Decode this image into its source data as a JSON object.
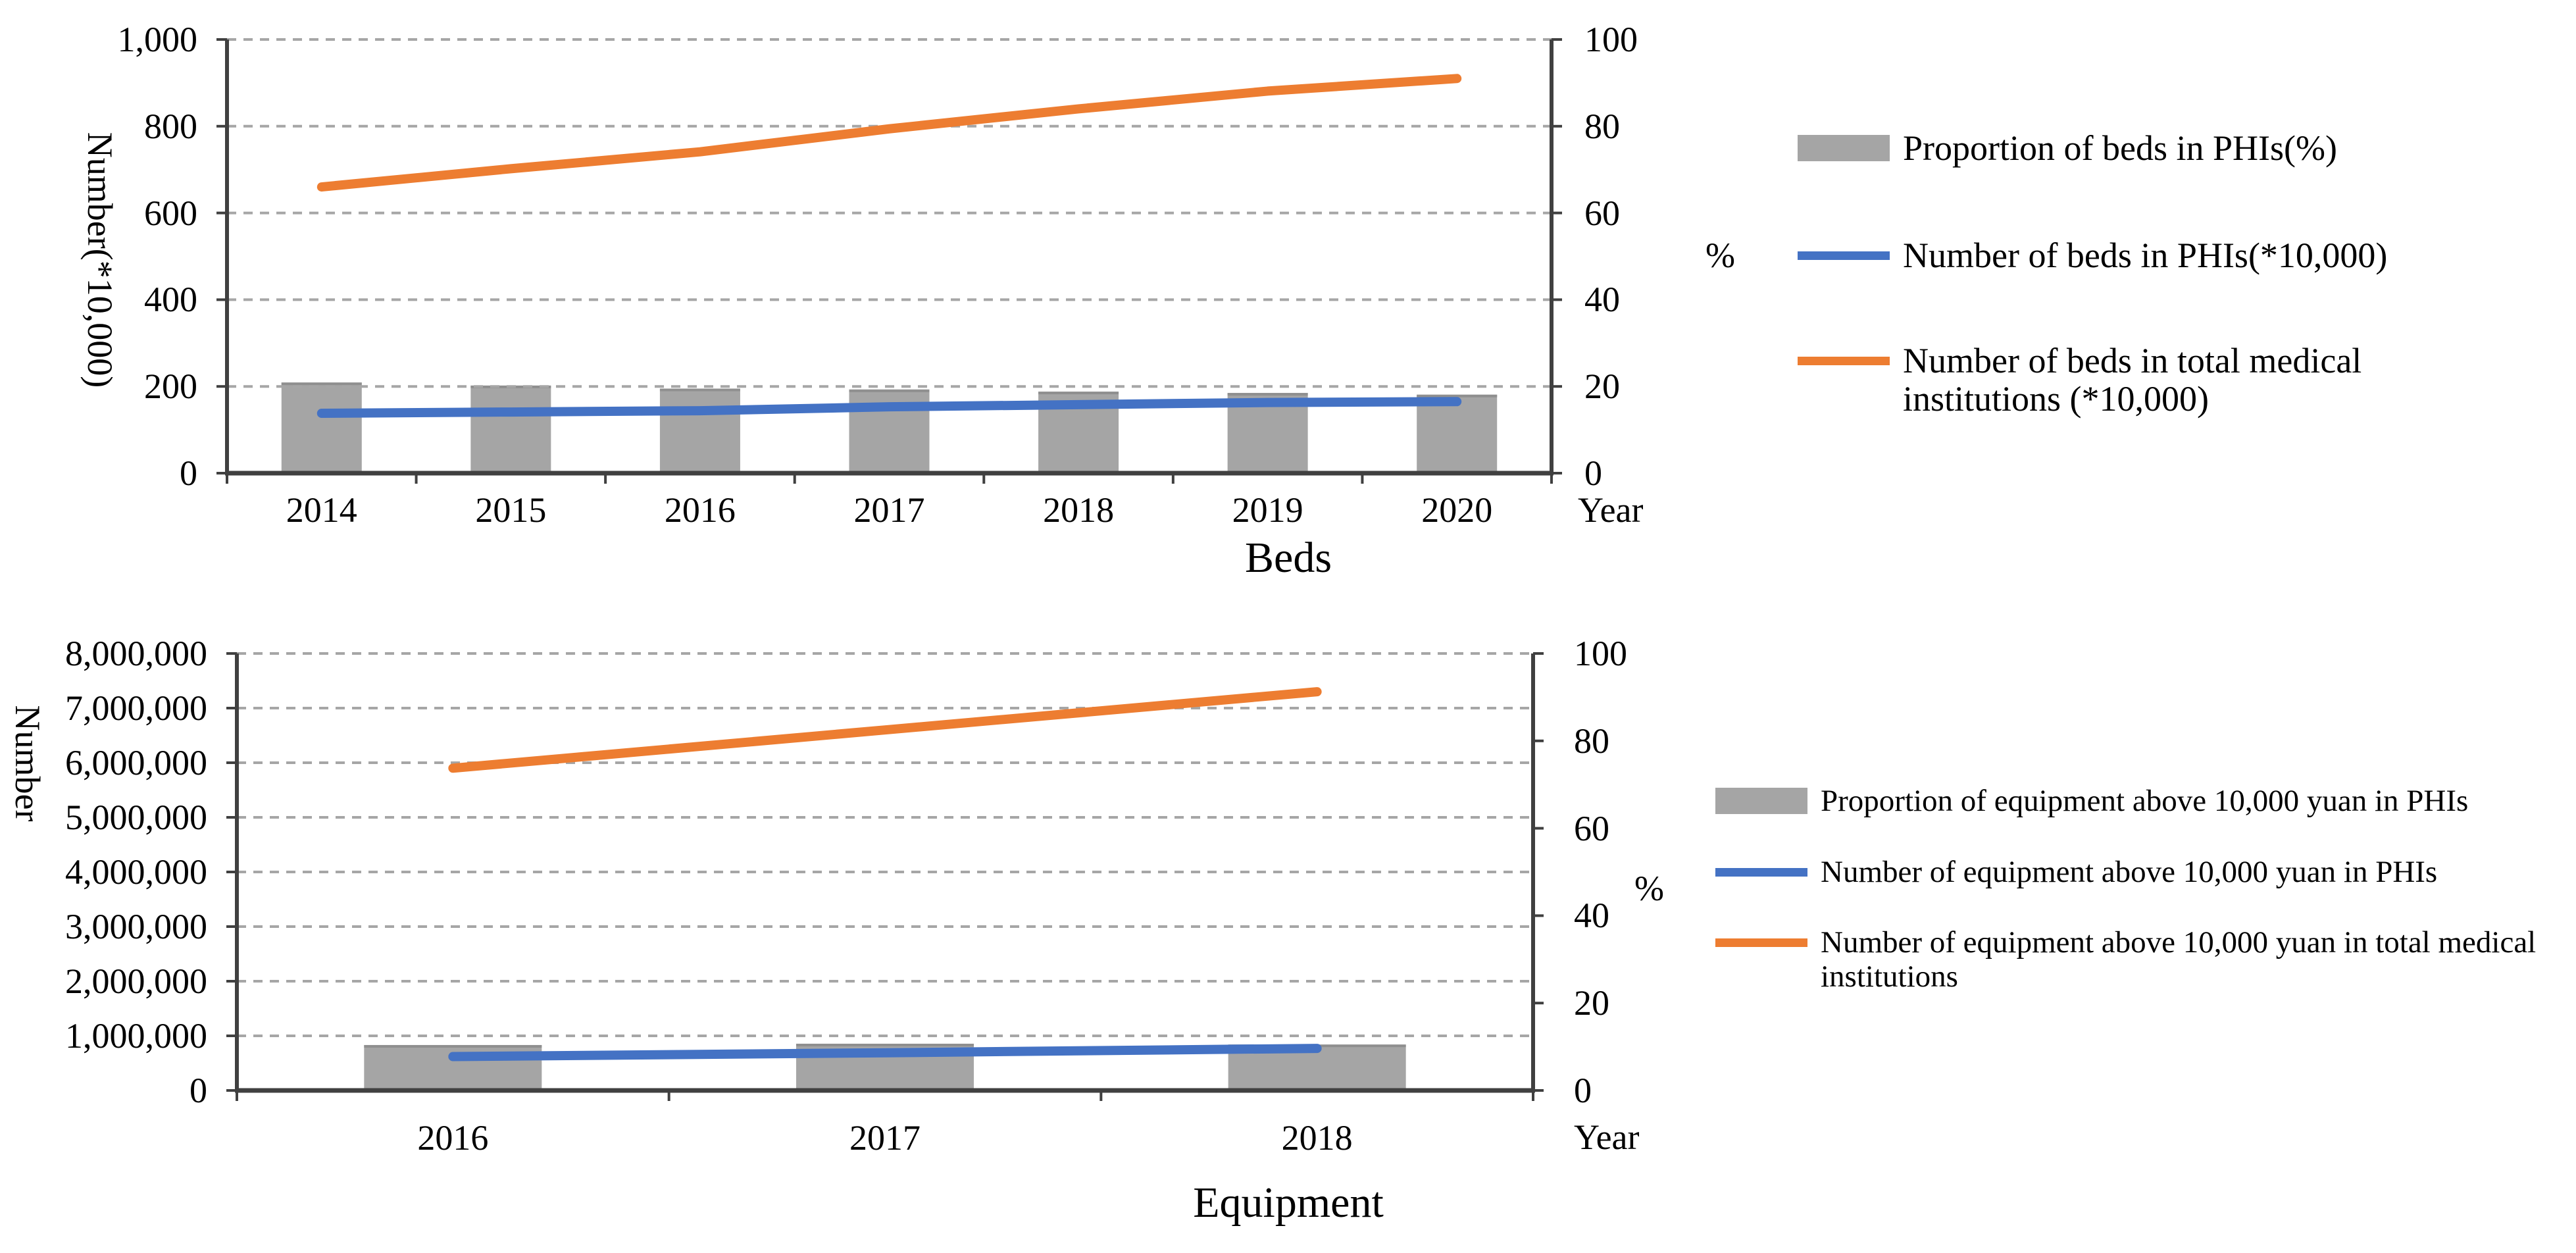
{
  "figure": {
    "background": "#ffffff"
  },
  "colors": {
    "bar": "#a5a5a5",
    "bar_edge": "#8f8f8f",
    "line_phi_blue": "#4472c4",
    "line_total_orange": "#ed7d31",
    "gridline": "#a6a6a6",
    "axis": "#404040",
    "text": "#000000"
  },
  "chart_data": [
    {
      "type": "bar+line",
      "title": "Beds",
      "xlabel": "Year",
      "ylabel_left": "Number(*10,000)",
      "ylabel_right": "%",
      "categories": [
        "2014",
        "2015",
        "2016",
        "2017",
        "2018",
        "2019",
        "2020"
      ],
      "axis_left": {
        "min": 0,
        "max": 1000,
        "step": 200,
        "tick_labels": [
          "0",
          "200",
          "400",
          "600",
          "800",
          "1,000"
        ]
      },
      "axis_right": {
        "min": 0,
        "max": 100,
        "step": 20,
        "tick_labels": [
          "0",
          "20",
          "40",
          "60",
          "80",
          "100"
        ]
      },
      "grid": true,
      "legend_position": "right",
      "series": [
        {
          "name": "Proportion of beds in PHIs(%)",
          "type": "bar",
          "axis": "right",
          "color": "#a5a5a5",
          "values": [
            20.9,
            20.2,
            19.5,
            19.3,
            18.8,
            18.5,
            18.1
          ]
        },
        {
          "name": "Number of beds in PHIs(*10,000)",
          "type": "line",
          "axis": "left",
          "color": "#4472c4",
          "values": [
            138,
            141,
            144,
            153,
            158,
            163,
            165
          ]
        },
        {
          "name": "Number of beds in total medical institutions (*10,000)",
          "type": "line",
          "axis": "left",
          "color": "#ed7d31",
          "values": [
            660,
            702,
            741,
            794,
            840,
            881,
            910
          ]
        }
      ]
    },
    {
      "type": "bar+line",
      "title": "Equipment",
      "xlabel": "Year",
      "ylabel_left": "Number",
      "ylabel_right": "%",
      "categories": [
        "2016",
        "2017",
        "2018"
      ],
      "axis_left": {
        "min": 0,
        "max": 8000000,
        "step": 1000000,
        "tick_labels": [
          "0",
          "1,000,000",
          "2,000,000",
          "3,000,000",
          "4,000,000",
          "5,000,000",
          "6,000,000",
          "7,000,000",
          "8,000,000"
        ]
      },
      "axis_right": {
        "min": 0,
        "max": 100,
        "step": 20,
        "tick_labels": [
          "0",
          "20",
          "40",
          "60",
          "80",
          "100"
        ]
      },
      "grid": true,
      "legend_position": "right",
      "series": [
        {
          "name": "Proportion of equipment above 10,000 yuan in PHIs",
          "type": "bar",
          "axis": "right",
          "color": "#a5a5a5",
          "values": [
            10.4,
            10.7,
            10.5
          ]
        },
        {
          "name": "Number of equipment above 10,000 yuan in PHIs",
          "type": "line",
          "axis": "left",
          "color": "#4472c4",
          "values": [
            620000,
            690000,
            770000
          ]
        },
        {
          "name": "Number of equipment above 10,000 yuan in total medical institutions",
          "type": "line",
          "axis": "left",
          "color": "#ed7d31",
          "values": [
            5900000,
            6600000,
            7300000
          ]
        }
      ]
    }
  ]
}
